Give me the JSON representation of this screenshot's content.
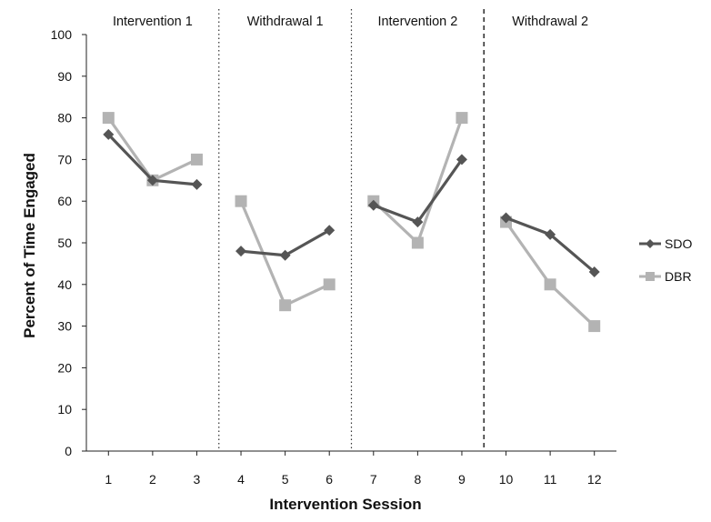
{
  "chart_data": {
    "type": "line",
    "title": "",
    "xlabel": "Intervention Session",
    "ylabel": "Percent of Time Engaged",
    "x": [
      1,
      2,
      3,
      4,
      5,
      6,
      7,
      8,
      9,
      10,
      11,
      12
    ],
    "ylim": [
      0,
      100
    ],
    "yticks": [
      0,
      10,
      20,
      30,
      40,
      50,
      60,
      70,
      80,
      90,
      100
    ],
    "grid": false,
    "legend_position": "right",
    "phases": [
      {
        "label": "Intervention 1",
        "sessions": [
          1,
          2,
          3
        ],
        "divider_after": "dotted"
      },
      {
        "label": "Withdrawal 1",
        "sessions": [
          4,
          5,
          6
        ],
        "divider_after": "dotted"
      },
      {
        "label": "Intervention 2",
        "sessions": [
          7,
          8,
          9
        ],
        "divider_after": "dashed"
      },
      {
        "label": "Withdrawal 2",
        "sessions": [
          10,
          11,
          12
        ],
        "divider_after": ""
      }
    ],
    "series": [
      {
        "name": "SDO",
        "marker": "diamond",
        "color": "#555555",
        "values": [
          76,
          65,
          64,
          48,
          47,
          53,
          59,
          55,
          70,
          56,
          52,
          43
        ]
      },
      {
        "name": "DBR",
        "marker": "square",
        "color": "#b3b3b3",
        "values": [
          80,
          65,
          70,
          60,
          35,
          40,
          60,
          50,
          80,
          55,
          40,
          30
        ]
      }
    ]
  }
}
